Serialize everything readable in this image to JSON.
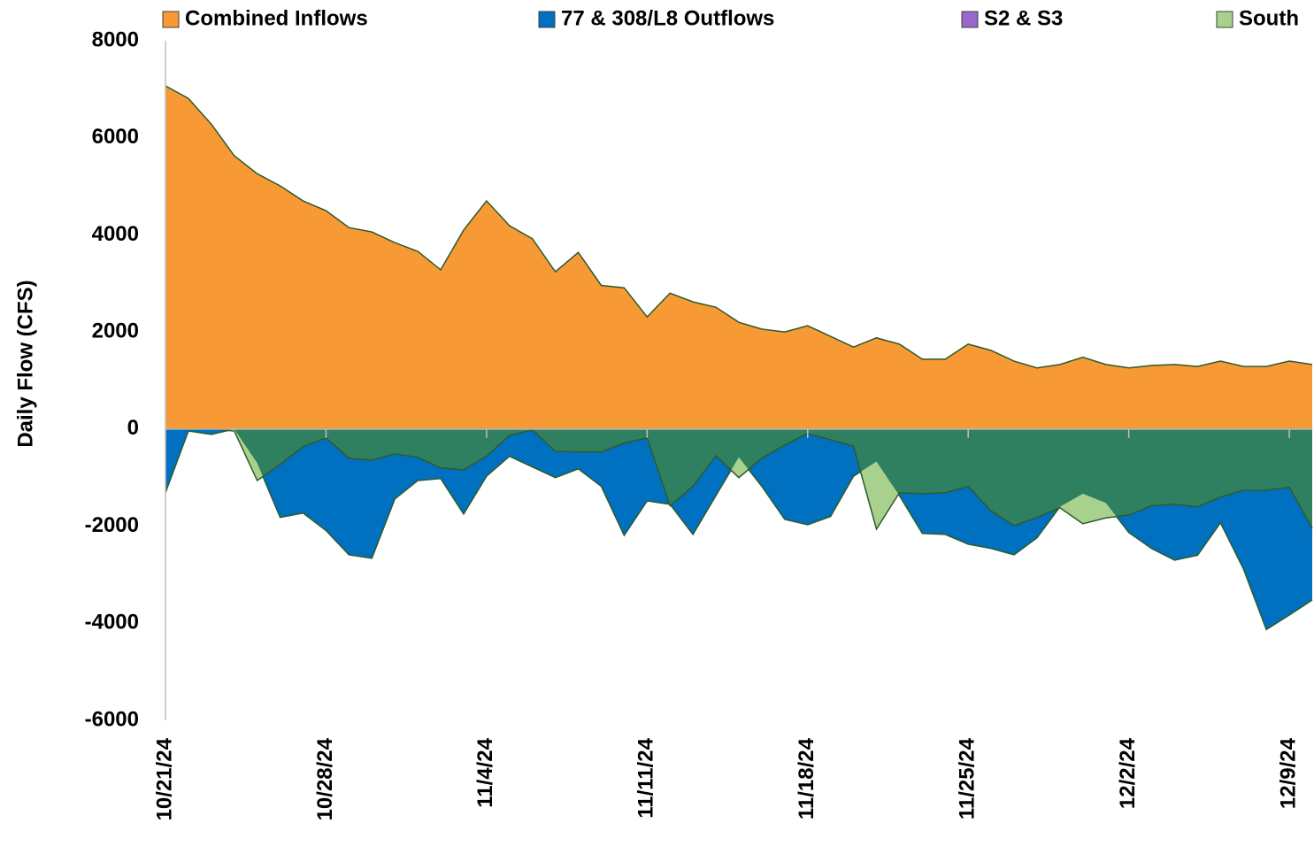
{
  "chart_data": {
    "type": "area",
    "y_label": "Daily Flow (CFS)",
    "categories": [
      "10/21/24",
      null,
      null,
      null,
      null,
      null,
      null,
      "10/28/24",
      null,
      null,
      null,
      null,
      null,
      null,
      "11/4/24",
      null,
      null,
      null,
      null,
      null,
      null,
      "11/11/24",
      null,
      null,
      null,
      null,
      null,
      null,
      "11/18/24",
      null,
      null,
      null,
      null,
      null,
      null,
      "11/25/24",
      null,
      null,
      null,
      null,
      null,
      null,
      "12/2/24",
      null,
      null,
      null,
      null,
      null,
      null,
      "12/9/24",
      null
    ],
    "series": [
      {
        "name": "Combined Inflows",
        "color": "#f79a36",
        "values": [
          7070,
          6810,
          6280,
          5630,
          5260,
          5010,
          4700,
          4500,
          4150,
          4060,
          3840,
          3660,
          3280,
          4100,
          4700,
          4190,
          3920,
          3240,
          3640,
          2960,
          2910,
          2310,
          2800,
          2620,
          2510,
          2200,
          2060,
          2000,
          2130,
          1910,
          1690,
          1880,
          1750,
          1440,
          1440,
          1750,
          1620,
          1400,
          1260,
          1330,
          1480,
          1330,
          1260,
          1310,
          1330,
          1290,
          1400,
          1290,
          1290,
          1400,
          1330
        ]
      },
      {
        "name": "77 & 308/L8 Outflows",
        "color": "#0070c0",
        "values": [
          -1310,
          -40,
          -110,
          0,
          -700,
          -1820,
          -1730,
          -2090,
          -2590,
          -2660,
          -1440,
          -1060,
          -1020,
          -1750,
          -970,
          -560,
          -780,
          -1000,
          -820,
          -1180,
          -2190,
          -1480,
          -1550,
          -2170,
          -1370,
          -580,
          -1180,
          -1860,
          -1970,
          -1800,
          -970,
          -670,
          -1370,
          -2150,
          -2170,
          -2370,
          -2460,
          -2590,
          -2240,
          -1600,
          -1330,
          -1520,
          -2130,
          -2460,
          -2700,
          -2600,
          -1930,
          -2880,
          -4130,
          -3830,
          -3520
        ]
      },
      {
        "name": "S2 & S3",
        "color": "#9966cc",
        "values": [
          0,
          0,
          0,
          0,
          0,
          0,
          0,
          0,
          0,
          0,
          0,
          0,
          0,
          0,
          0,
          0,
          0,
          0,
          0,
          0,
          0,
          0,
          0,
          0,
          0,
          0,
          0,
          0,
          0,
          0,
          0,
          0,
          0,
          0,
          0,
          0,
          0,
          0,
          0,
          0,
          0,
          0,
          0,
          0,
          0,
          0,
          0,
          0,
          0,
          0,
          0
        ]
      },
      {
        "name": "South",
        "color": "#a9d18e",
        "overlap": true,
        "values": [
          0,
          0,
          0,
          -40,
          -1060,
          -730,
          -360,
          -180,
          -600,
          -640,
          -510,
          -580,
          -800,
          -840,
          -560,
          -130,
          -20,
          -460,
          -470,
          -470,
          -290,
          -180,
          -1580,
          -1180,
          -550,
          -1000,
          -600,
          -330,
          -90,
          -220,
          -350,
          -2060,
          -1310,
          -1330,
          -1310,
          -1180,
          -1690,
          -1990,
          -1820,
          -1620,
          -1950,
          -1830,
          -1770,
          -1580,
          -1550,
          -1600,
          -1400,
          -1260,
          -1260,
          -1200,
          -2040
        ]
      }
    ],
    "ylim": [
      -6000,
      8000
    ],
    "yticks": [
      8000,
      6000,
      4000,
      2000,
      0,
      -2000,
      -4000,
      -6000
    ],
    "legend": "top",
    "outline_color": "#2f5a2a"
  }
}
